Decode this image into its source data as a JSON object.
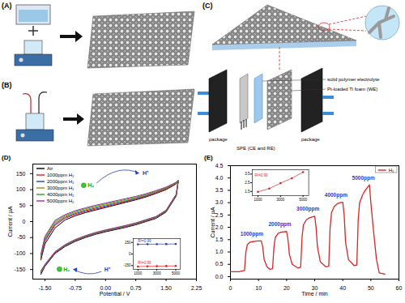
{
  "figure": {
    "panels": [
      {
        "label": "(A)"
      },
      {
        "label": "(B)"
      },
      {
        "label": "(C)",
        "callouts": [
          "solid polymer electrolyte",
          "Pt-loaded Ti foam (WE)",
          "package",
          "SPE (CE and RE)",
          "package"
        ]
      }
    ]
  },
  "chart_data": [
    {
      "type": "line",
      "title": "(D)",
      "x_label": "Potential / V",
      "y_label": "Current / μA",
      "x": [
        -1.6,
        -1.5,
        -1.25,
        -1.0,
        -0.75,
        -0.5,
        -0.25,
        0,
        0.25,
        0.5,
        0.75,
        1.0,
        1.25,
        1.5,
        1.75,
        1.8,
        1.75,
        1.5,
        1.25,
        1.0,
        0.75,
        0.5,
        0.25,
        0,
        -0.25,
        -0.5,
        -0.75,
        -1.0,
        -1.25,
        -1.5,
        -1.6
      ],
      "series": [
        {
          "name": "Air",
          "color": "#000000",
          "values": [
            -120,
            -70,
            -20,
            5,
            18,
            28,
            36,
            44,
            52,
            60,
            68,
            77,
            88,
            100,
            118,
            125,
            80,
            30,
            10,
            0,
            -10,
            -18,
            -25,
            -32,
            -40,
            -50,
            -62,
            -78,
            -100,
            -140,
            -165
          ]
        },
        {
          "name": "1000ppm H₂",
          "color": "#e41a1c",
          "values": [
            -115,
            -62,
            -12,
            10,
            22,
            31,
            39,
            46,
            54,
            62,
            70,
            79,
            90,
            102,
            119,
            126,
            82,
            32,
            12,
            2,
            -8,
            -16,
            -23,
            -30,
            -38,
            -48,
            -60,
            -76,
            -98,
            -138,
            -162
          ]
        },
        {
          "name": "2000ppm H₂",
          "color": "#1f3fbf",
          "values": [
            -112,
            -58,
            -8,
            13,
            25,
            34,
            42,
            49,
            57,
            64,
            72,
            81,
            92,
            104,
            120,
            127,
            83,
            33,
            13,
            3,
            -7,
            -15,
            -22,
            -29,
            -37,
            -47,
            -59,
            -75,
            -97,
            -137,
            -160
          ]
        },
        {
          "name": "3000ppm H₂",
          "color": "#b8860b",
          "values": [
            -108,
            -54,
            -4,
            16,
            28,
            37,
            45,
            52,
            59,
            66,
            74,
            83,
            93,
            105,
            121,
            128,
            84,
            34,
            14,
            4,
            -6,
            -14,
            -21,
            -28,
            -36,
            -46,
            -58,
            -74,
            -96,
            -136,
            -158
          ]
        },
        {
          "name": "4000ppm H₂",
          "color": "#2ca02c",
          "values": [
            -105,
            -50,
            0,
            19,
            31,
            40,
            48,
            55,
            62,
            69,
            76,
            85,
            95,
            106,
            122,
            129,
            85,
            35,
            15,
            5,
            -5,
            -13,
            -20,
            -27,
            -35,
            -45,
            -57,
            -73,
            -95,
            -135,
            -156
          ]
        },
        {
          "name": "5000ppm H₂",
          "color": "#a0309a",
          "values": [
            -102,
            -46,
            4,
            22,
            34,
            43,
            51,
            58,
            65,
            72,
            79,
            87,
            97,
            108,
            123,
            130,
            86,
            36,
            16,
            6,
            -4,
            -12,
            -19,
            -26,
            -34,
            -44,
            -56,
            -72,
            -94,
            -134,
            -154
          ]
        }
      ],
      "xlim": [
        -1.8,
        2.25
      ],
      "ylim": [
        -180,
        180
      ],
      "xticks": [
        {
          "value": -1.5,
          "label": "-1.50"
        },
        {
          "value": -0.75,
          "label": "-0.75"
        },
        {
          "value": 0,
          "label": "0.00"
        },
        {
          "value": 0.75,
          "label": "0.75"
        },
        {
          "value": 1.5,
          "label": "1.50"
        },
        {
          "value": 2.25,
          "label": "2.25"
        }
      ],
      "yticks": [
        -150,
        -100,
        -50,
        0,
        50,
        100,
        150
      ],
      "legend": "top-left",
      "annotations": [
        "H₂",
        "H⁺",
        "H⁺",
        "H₂"
      ],
      "inset": {
        "type": "line",
        "x": [
          1000,
          2000,
          3000,
          4000,
          5000
        ],
        "series": [
          {
            "color": "#1f3fbf",
            "marker": "square",
            "label": "R²=0.99",
            "values": [
              126,
              127,
              128,
              129,
              130
            ]
          },
          {
            "color": "#e41a1c",
            "marker": "circle",
            "label": "R²=0.99",
            "values": [
              -162,
              -160,
              -158,
              -156,
              -154
            ]
          }
        ],
        "xlim": [
          500,
          5500
        ],
        "ylim": [
          -200,
          200
        ],
        "xticks": [
          1000,
          3000,
          5000
        ],
        "yticks": [
          -150,
          0,
          150
        ]
      }
    },
    {
      "type": "line",
      "title": "(E)",
      "x_label": "Time / min",
      "y_label": "Current / μA",
      "x": [
        0,
        3,
        5,
        5.5,
        6,
        7,
        8,
        9,
        10,
        11,
        11.5,
        12,
        13,
        14,
        15,
        15.5,
        16,
        17,
        18,
        19,
        20,
        20.5,
        21,
        22,
        24,
        25,
        25.5,
        26,
        27,
        28,
        29,
        30,
        30.5,
        31,
        32,
        34,
        35,
        35.5,
        36,
        37,
        38,
        39,
        40,
        40.5,
        41,
        42,
        44,
        45,
        45.5,
        46,
        47,
        48,
        49,
        49.5,
        50,
        51,
        52,
        53,
        55
      ],
      "series": [
        {
          "name": "H₂",
          "color": "#d62728",
          "values": [
            0.2,
            0.2,
            0.25,
            1.0,
            1.3,
            1.4,
            1.42,
            1.44,
            1.45,
            1.45,
            1.2,
            0.7,
            0.4,
            0.3,
            0.32,
            1.2,
            1.6,
            1.75,
            1.8,
            1.82,
            1.83,
            1.5,
            0.9,
            0.5,
            0.35,
            0.38,
            1.6,
            2.1,
            2.3,
            2.38,
            2.42,
            2.45,
            2.0,
            1.2,
            0.6,
            0.4,
            0.42,
            2.0,
            2.6,
            2.85,
            2.95,
            3.0,
            3.02,
            2.5,
            1.4,
            0.7,
            0.45,
            0.47,
            2.3,
            3.0,
            3.3,
            3.5,
            3.65,
            3.72,
            3.0,
            1.8,
            0.7,
            0.15,
            0.1
          ]
        }
      ],
      "xlim": [
        0,
        60
      ],
      "ylim": [
        -0.1,
        4.5
      ],
      "xticks": [
        0,
        10,
        20,
        30,
        40,
        50,
        60
      ],
      "yticks": [
        {
          "value": 0,
          "label": "0.0"
        },
        0.5,
        {
          "value": 1,
          "label": "1.0"
        },
        1.5,
        {
          "value": 2,
          "label": "2.0"
        },
        2.5,
        {
          "value": 3,
          "label": "3.0"
        },
        3.5,
        {
          "value": 4,
          "label": "4.0"
        },
        4.5
      ],
      "legend": "top-right",
      "annotations": [
        "1000ppm",
        "2000ppm",
        "3000ppm",
        "4000ppm",
        "5000ppm"
      ],
      "inset": {
        "type": "line",
        "x": [
          1000,
          2000,
          3000,
          4000,
          5000
        ],
        "series": [
          {
            "color": "#d62728",
            "marker": "circle",
            "label": "R²=0.99",
            "values": [
              1.45,
              1.83,
              2.45,
              3.02,
              3.72
            ]
          }
        ],
        "xlim": [
          500,
          5500
        ],
        "ylim": [
          1.0,
          4.0
        ],
        "xticks": [
          1000,
          3000,
          5000
        ],
        "yticks": [
          1.5,
          2.5,
          3.5
        ]
      }
    }
  ]
}
